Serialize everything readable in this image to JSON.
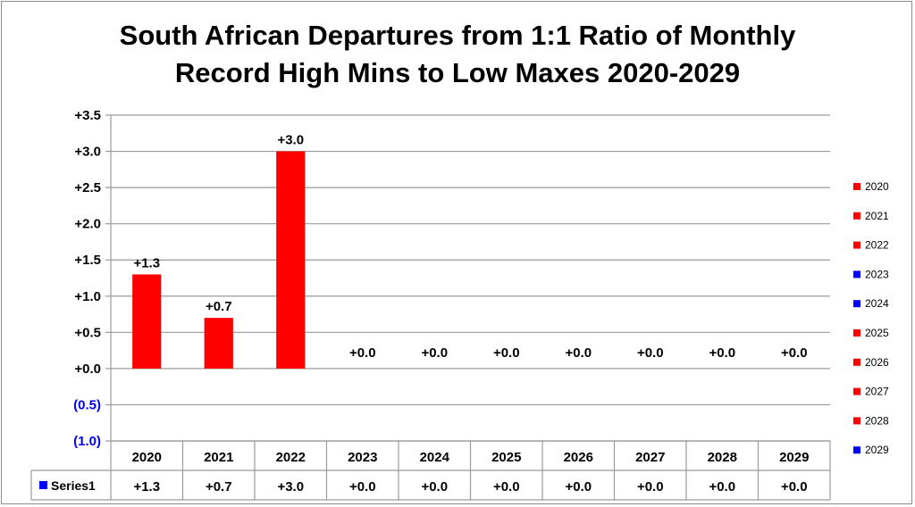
{
  "chart_data": {
    "type": "bar",
    "title_line1": "South African Departures from 1:1 Ratio of Monthly",
    "title_line2": "Record High Mins to Low Maxes 2020-2029",
    "categories": [
      "2020",
      "2021",
      "2022",
      "2023",
      "2024",
      "2025",
      "2026",
      "2027",
      "2028",
      "2029"
    ],
    "series": [
      {
        "name": "Series1",
        "values": [
          1.3,
          0.7,
          3.0,
          0.0,
          0.0,
          0.0,
          0.0,
          0.0,
          0.0,
          0.0
        ],
        "labels": [
          "+1.3",
          "+0.7",
          "+3.0",
          "+0.0",
          "+0.0",
          "+0.0",
          "+0.0",
          "+0.0",
          "+0.0",
          "+0.0"
        ]
      }
    ],
    "ylim": [
      -1.0,
      3.5
    ],
    "y_ticks": [
      3.5,
      3.0,
      2.5,
      2.0,
      1.5,
      1.0,
      0.5,
      0.0,
      -0.5,
      -1.0
    ],
    "y_tick_labels": [
      "+3.5",
      "+3.0",
      "+2.5",
      "+2.0",
      "+1.5",
      "+1.0",
      "+0.5",
      "+0.0",
      "(0.5)",
      "(1.0)"
    ],
    "grid": true,
    "legend_position": "right",
    "legend_entries": [
      {
        "label": "2020",
        "color": "#ff0000"
      },
      {
        "label": "2021",
        "color": "#ff0000"
      },
      {
        "label": "2022",
        "color": "#ff0000"
      },
      {
        "label": "2023",
        "color": "#0000ff"
      },
      {
        "label": "2024",
        "color": "#0000ff"
      },
      {
        "label": "2025",
        "color": "#ff0000"
      },
      {
        "label": "2026",
        "color": "#ff0000"
      },
      {
        "label": "2027",
        "color": "#ff0000"
      },
      {
        "label": "2028",
        "color": "#ff0000"
      },
      {
        "label": "2029",
        "color": "#0000ff"
      }
    ],
    "data_table": {
      "series_label": "Series1",
      "series_key_color": "#0000ff",
      "values": [
        "+1.3",
        "+0.7",
        "+3.0",
        "+0.0",
        "+0.0",
        "+0.0",
        "+0.0",
        "+0.0",
        "+0.0",
        "+0.0"
      ]
    },
    "colors": {
      "positive_bar": "#ff0000",
      "negative_tick_label": "#0000ff",
      "grid": "#9a9a9a"
    }
  }
}
